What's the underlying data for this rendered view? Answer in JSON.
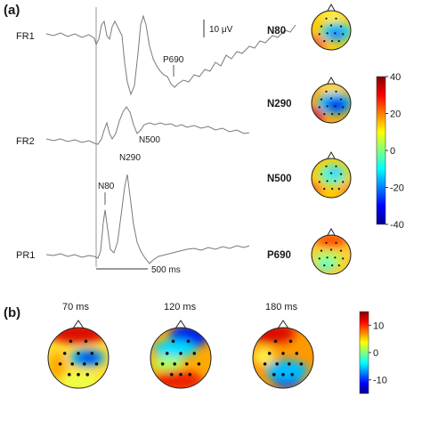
{
  "panel_a_label": "(a)",
  "panel_b_label": "(b)",
  "scale_bar_voltage": "10 μV",
  "scale_bar_time": "500 ms",
  "chart_data": [
    {
      "type": "line",
      "title": "",
      "series": [
        {
          "name": "FR1",
          "annotations": [
            "P690"
          ]
        },
        {
          "name": "FR2",
          "annotations": [
            "N500"
          ]
        },
        {
          "name": "PR1",
          "annotations": [
            "N80",
            "N290"
          ]
        }
      ],
      "scale_bars": {
        "voltage_uV": 10,
        "time_ms": 500
      }
    },
    {
      "type": "heatmap",
      "description_type": "scalp topographies",
      "maps": [
        {
          "label": "N80",
          "pattern": "frontal-negative"
        },
        {
          "label": "N290",
          "pattern": "central-strong-negative"
        },
        {
          "label": "N500",
          "pattern": "central-weak-negative"
        },
        {
          "label": "P690",
          "pattern": "frontal-positive"
        }
      ],
      "colorbar": {
        "ticks": [
          40,
          20,
          0,
          -20,
          -40
        ],
        "range": [
          -40,
          40
        ]
      }
    },
    {
      "type": "heatmap",
      "description_type": "scalp topographies",
      "maps": [
        {
          "label": "70 ms",
          "pattern": "frontal-positive-central-negative"
        },
        {
          "label": "120 ms",
          "pattern": "frontal-negative"
        },
        {
          "label": "180 ms",
          "pattern": "occipital-negative"
        }
      ],
      "colorbar": {
        "ticks": [
          10,
          0,
          -10
        ],
        "range": [
          -15,
          15
        ]
      }
    }
  ],
  "colors": {
    "trace": "#7a7a7a",
    "jet": [
      "#00008f",
      "#0000ff",
      "#00ffff",
      "#ffff00",
      "#ff0000",
      "#800000"
    ]
  }
}
